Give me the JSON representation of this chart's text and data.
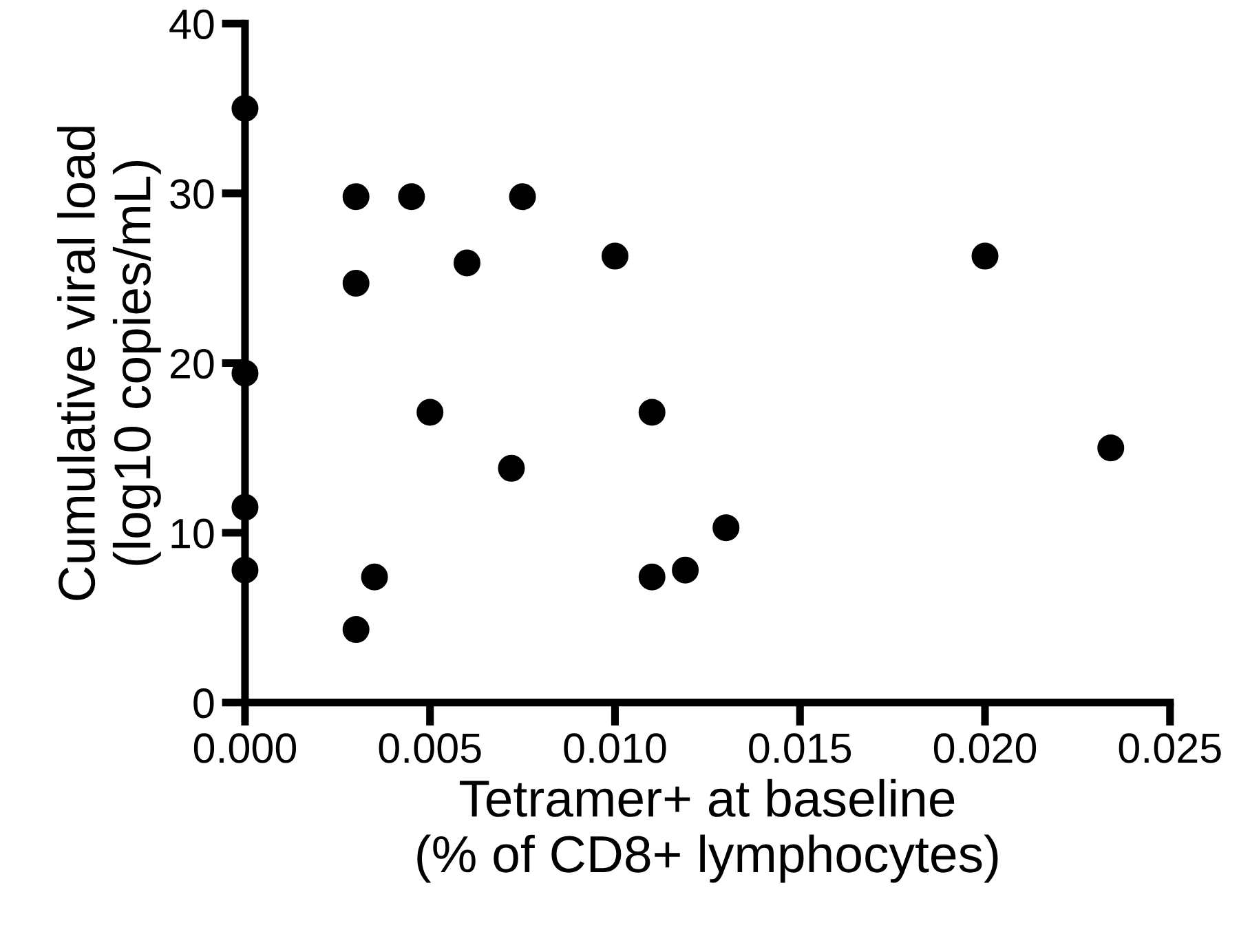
{
  "chart_data": {
    "type": "scatter",
    "xlabel": "Tetramer+ at baseline\n(% of CD8+ lymphocytes)",
    "ylabel": "Cumulative viral load\n(log10 copies/mL)",
    "series": [
      {
        "color": "#000000",
        "x": [
          0,
          0,
          0,
          0,
          0.003,
          0.003,
          0.003,
          0.0045,
          0.0075,
          0.006,
          0.01,
          0.0035,
          0.005,
          0.0072,
          0.011,
          0.011,
          0.0119,
          0.013,
          0.02,
          0.0234
        ],
        "values": [
          35.0,
          19.4,
          11.5,
          7.8,
          29.8,
          24.7,
          4.3,
          29.8,
          29.8,
          25.9,
          26.3,
          7.4,
          17.1,
          13.8,
          17.1,
          7.4,
          7.8,
          10.3,
          26.3,
          15.0
        ]
      }
    ],
    "marker": "circle",
    "xlim": [
      0,
      0.025
    ],
    "xticks": [
      {
        "value": 0,
        "label": "0.000"
      },
      0.005,
      {
        "value": 0.01,
        "label": "0.010"
      },
      0.015,
      {
        "value": 0.02,
        "label": "0.020"
      },
      0.025
    ],
    "ylim": [
      0,
      40
    ],
    "yticks": [
      0,
      10,
      20,
      30,
      40
    ]
  }
}
